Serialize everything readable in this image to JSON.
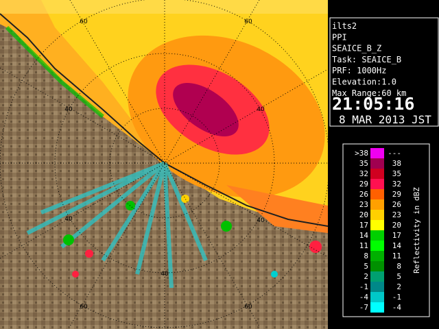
{
  "info": {
    "lines": [
      "ilts2",
      "PPI",
      "SEAICE_B_Z",
      "Task: SEAICE_B",
      "PRF: 1000Hz",
      "Elevation:1.0",
      "Max Range:60 km"
    ],
    "time": "21:05:16",
    "date": "8 MAR 2013 JST"
  },
  "legend": {
    "title": "Reflectivity in dBZ",
    "rows": [
      {
        "low": ">38",
        "high": "---",
        "color": "#f000f0"
      },
      {
        "low": "35",
        "high": "38",
        "color": "#a00050"
      },
      {
        "low": "32",
        "high": "35",
        "color": "#d00020"
      },
      {
        "low": "29",
        "high": "32",
        "color": "#ff1050"
      },
      {
        "low": "26",
        "high": "29",
        "color": "#ff6000"
      },
      {
        "low": "23",
        "high": "26",
        "color": "#ffa000"
      },
      {
        "low": "20",
        "high": "23",
        "color": "#ffd000"
      },
      {
        "low": "17",
        "high": "20",
        "color": "#ffff00"
      },
      {
        "low": "14",
        "high": "17",
        "color": "#00d000"
      },
      {
        "low": "11",
        "high": "14",
        "color": "#00ff00"
      },
      {
        "low": "8",
        "high": "11",
        "color": "#00b000"
      },
      {
        "low": "5",
        "high": "8",
        "color": "#009000"
      },
      {
        "low": "2",
        "high": "5",
        "color": "#00a070"
      },
      {
        "low": "-1",
        "high": "2",
        "color": "#008888"
      },
      {
        "low": "-4",
        "high": "-1",
        "color": "#00c8c8"
      },
      {
        "low": "-7",
        "high": "-4",
        "color": "#00ffff"
      }
    ]
  },
  "range_labels": [
    "60",
    "60",
    "40",
    "40",
    "40",
    "40",
    "40",
    "60",
    "60"
  ]
}
